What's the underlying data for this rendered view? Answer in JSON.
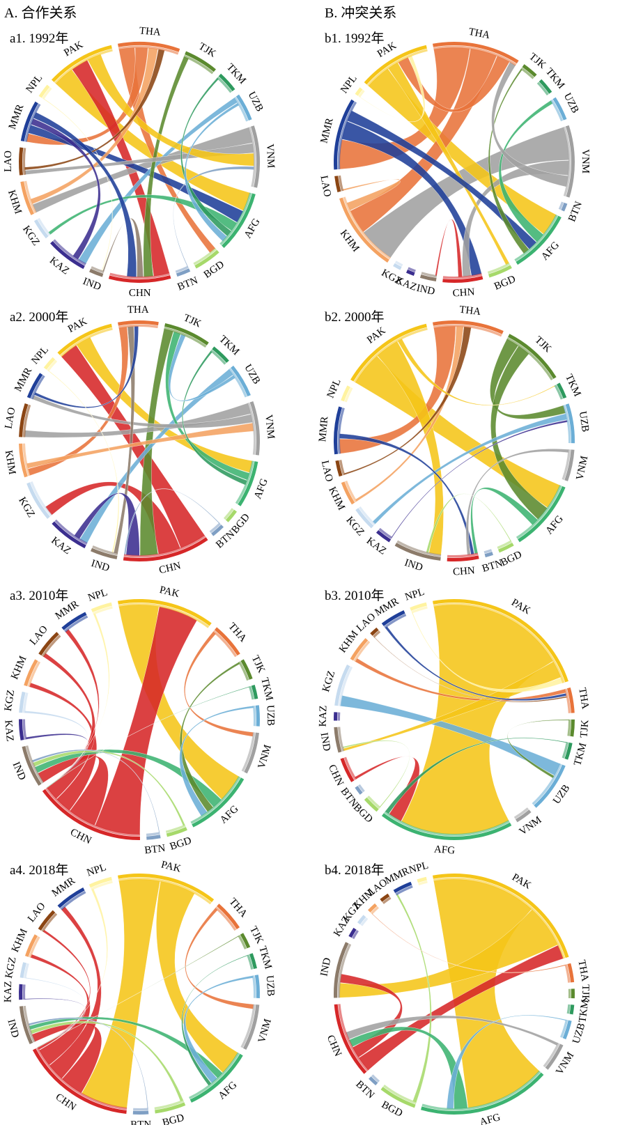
{
  "colors": {
    "PAK": "#f5c518",
    "THA": "#e8733a",
    "TJK": "#5b8a2e",
    "TKM": "#2e9a5e",
    "UZB": "#6baed6",
    "VNM": "#a0a0a0",
    "AFG": "#3cb371",
    "BGD": "#a6d96a",
    "BTN": "#7f9fc4",
    "CHN": "#d62728",
    "IND": "#8c7b6a",
    "KAZ": "#3b2e8f",
    "KGZ": "#c6dbef",
    "KHM": "#f4a261",
    "LAO": "#8b4513",
    "MMR": "#1f3f99",
    "NPL": "#fff3a0"
  },
  "columns": {
    "A": {
      "title": "A. 合作关系"
    },
    "B": {
      "title": "B. 冲突关系"
    }
  },
  "panels": [
    {
      "id": "a1",
      "title": "a1. 1992年",
      "nodes": [
        [
          "THA",
          9
        ],
        [
          "TJK",
          5
        ],
        [
          "TKM",
          3
        ],
        [
          "UZB",
          4
        ],
        [
          "VNM",
          9
        ],
        [
          "AFG",
          9
        ],
        [
          "BGD",
          4
        ],
        [
          "BTN",
          2
        ],
        [
          "CHN",
          9
        ],
        [
          "IND",
          2
        ],
        [
          "KAZ",
          6
        ],
        [
          "KGZ",
          3
        ],
        [
          "KHM",
          5
        ],
        [
          "LAO",
          4
        ],
        [
          "MMR",
          6
        ],
        [
          "NPL",
          2
        ],
        [
          "PAK",
          10
        ]
      ],
      "links": [
        [
          "PAK",
          "AFG",
          6
        ],
        [
          "THA",
          "BGD",
          5
        ],
        [
          "THA",
          "MMR",
          4
        ],
        [
          "CHN",
          "PAK",
          5
        ],
        [
          "VNM",
          "KHM",
          5
        ],
        [
          "MMR",
          "AFG",
          4
        ],
        [
          "UZB",
          "KAZ",
          4
        ],
        [
          "TJK",
          "CHN",
          3
        ],
        [
          "AFG",
          "KGZ",
          3
        ],
        [
          "VNM",
          "LAO",
          3
        ],
        [
          "IND",
          "CHN",
          2
        ],
        [
          "PAK",
          "VNM",
          4
        ],
        [
          "TKM",
          "AFG",
          2
        ],
        [
          "KHM",
          "THA",
          3
        ],
        [
          "NPL",
          "IND",
          1
        ],
        [
          "BTN",
          "VNM",
          1
        ],
        [
          "LAO",
          "THA",
          2
        ],
        [
          "KAZ",
          "MMR",
          3
        ],
        [
          "UZB",
          "AFG",
          2
        ],
        [
          "MMR",
          "CHN",
          3
        ]
      ]
    },
    {
      "id": "b1",
      "title": "b1. 1992年",
      "nodes": [
        [
          "THA",
          11
        ],
        [
          "TJK",
          2
        ],
        [
          "TKM",
          2
        ],
        [
          "UZB",
          3
        ],
        [
          "VNM",
          9
        ],
        [
          "BTN",
          1
        ],
        [
          "AFG",
          8
        ],
        [
          "BGD",
          3
        ],
        [
          "CHN",
          5
        ],
        [
          "IND",
          2
        ],
        [
          "KAZ",
          1
        ],
        [
          "KGZ",
          1
        ],
        [
          "KHM",
          10
        ],
        [
          "LAO",
          2
        ],
        [
          "MMR",
          9
        ],
        [
          "NPL",
          1
        ],
        [
          "PAK",
          9
        ]
      ],
      "links": [
        [
          "VNM",
          "KHM",
          9
        ],
        [
          "THA",
          "MMR",
          8
        ],
        [
          "PAK",
          "AFG",
          7
        ],
        [
          "THA",
          "KHM",
          6
        ],
        [
          "MMR",
          "CHN",
          5
        ],
        [
          "VNM",
          "CHN",
          4
        ],
        [
          "PAK",
          "BGD",
          3
        ],
        [
          "AFG",
          "UZB",
          3
        ],
        [
          "MMR",
          "AFG",
          3
        ],
        [
          "KHM",
          "LAO",
          2
        ],
        [
          "THA",
          "PAK",
          3
        ],
        [
          "TJK",
          "AFG",
          2
        ],
        [
          "VNM",
          "THA",
          3
        ],
        [
          "CHN",
          "IND",
          2
        ],
        [
          "NPL",
          "PAK",
          1
        ]
      ]
    },
    {
      "id": "a2",
      "title": "a2. 2000年",
      "nodes": [
        [
          "THA",
          6
        ],
        [
          "TJK",
          7
        ],
        [
          "TKM",
          3
        ],
        [
          "UZB",
          5
        ],
        [
          "VNM",
          8
        ],
        [
          "AFG",
          7
        ],
        [
          "BGD",
          2
        ],
        [
          "BTN",
          2
        ],
        [
          "CHN",
          13
        ],
        [
          "IND",
          4
        ],
        [
          "KAZ",
          6
        ],
        [
          "KGZ",
          6
        ],
        [
          "KHM",
          5
        ],
        [
          "LAO",
          5
        ],
        [
          "MMR",
          4
        ],
        [
          "NPL",
          2
        ],
        [
          "PAK",
          9
        ]
      ],
      "links": [
        [
          "CHN",
          "PAK",
          6
        ],
        [
          "CHN",
          "KGZ",
          5
        ],
        [
          "PAK",
          "AFG",
          5
        ],
        [
          "TJK",
          "CHN",
          4
        ],
        [
          "THA",
          "KHM",
          4
        ],
        [
          "VNM",
          "LAO",
          4
        ],
        [
          "UZB",
          "KAZ",
          4
        ],
        [
          "AFG",
          "TJK",
          3
        ],
        [
          "VNM",
          "MMR",
          3
        ],
        [
          "IND",
          "THA",
          3
        ],
        [
          "KAZ",
          "CHN",
          3
        ],
        [
          "KHM",
          "VNM",
          3
        ],
        [
          "TKM",
          "AFG",
          2
        ],
        [
          "MMR",
          "THA",
          2
        ],
        [
          "NPL",
          "IND",
          1
        ],
        [
          "BTN",
          "CHN",
          1
        ],
        [
          "UZB",
          "TJK",
          2
        ]
      ]
    },
    {
      "id": "b2",
      "title": "b2. 2000年",
      "nodes": [
        [
          "THA",
          9
        ],
        [
          "TJK",
          8
        ],
        [
          "TKM",
          2
        ],
        [
          "UZB",
          5
        ],
        [
          "VNM",
          4
        ],
        [
          "AFG",
          9
        ],
        [
          "BGD",
          2
        ],
        [
          "BTN",
          1
        ],
        [
          "CHN",
          4
        ],
        [
          "IND",
          6
        ],
        [
          "KAZ",
          2
        ],
        [
          "KGZ",
          3
        ],
        [
          "KHM",
          3
        ],
        [
          "LAO",
          2
        ],
        [
          "MMR",
          6
        ],
        [
          "NPL",
          2
        ],
        [
          "PAK",
          12
        ]
      ],
      "links": [
        [
          "PAK",
          "AFG",
          7
        ],
        [
          "THA",
          "MMR",
          6
        ],
        [
          "PAK",
          "IND",
          5
        ],
        [
          "TJK",
          "UZB",
          4
        ],
        [
          "TJK",
          "AFG",
          4
        ],
        [
          "UZB",
          "KGZ",
          3
        ],
        [
          "AFG",
          "CHN",
          2
        ],
        [
          "KHM",
          "THA",
          2
        ],
        [
          "LAO",
          "THA",
          2
        ],
        [
          "MMR",
          "CHN",
          2
        ],
        [
          "VNM",
          "CHN",
          2
        ],
        [
          "KAZ",
          "UZB",
          1
        ],
        [
          "BGD",
          "IND",
          1
        ],
        [
          "PAK",
          "TKM",
          1
        ]
      ]
    },
    {
      "id": "a3",
      "title": "a3. 2010年",
      "nodes": [
        [
          "PAK",
          14
        ],
        [
          "THA",
          5
        ],
        [
          "TJK",
          3
        ],
        [
          "TKM",
          2
        ],
        [
          "UZB",
          3
        ],
        [
          "VNM",
          6
        ],
        [
          "AFG",
          10
        ],
        [
          "BGD",
          3
        ],
        [
          "BTN",
          2
        ],
        [
          "CHN",
          16
        ],
        [
          "IND",
          6
        ],
        [
          "KAZ",
          3
        ],
        [
          "KGZ",
          3
        ],
        [
          "KHM",
          4
        ],
        [
          "LAO",
          4
        ],
        [
          "MMR",
          4
        ],
        [
          "NPL",
          3
        ]
      ],
      "links": [
        [
          "PAK",
          "AFG",
          8
        ],
        [
          "CHN",
          "PAK",
          8
        ],
        [
          "CHN",
          "IND",
          5
        ],
        [
          "CHN",
          "KHM",
          3
        ],
        [
          "CHN",
          "LAO",
          3
        ],
        [
          "CHN",
          "MMR",
          3
        ],
        [
          "THA",
          "VNM",
          2
        ],
        [
          "AFG",
          "IND",
          3
        ],
        [
          "KAZ",
          "CHN",
          2
        ],
        [
          "KGZ",
          "CHN",
          2
        ],
        [
          "TJK",
          "AFG",
          2
        ],
        [
          "UZB",
          "AFG",
          2
        ],
        [
          "BGD",
          "IND",
          2
        ],
        [
          "NPL",
          "CHN",
          2
        ],
        [
          "TKM",
          "CHN",
          1
        ],
        [
          "BTN",
          "IND",
          1
        ]
      ]
    },
    {
      "id": "b3",
      "title": "b3. 2010年",
      "nodes": [
        [
          "PAK",
          20
        ],
        [
          "THA",
          3
        ],
        [
          "TJK",
          2
        ],
        [
          "TKM",
          2
        ],
        [
          "UZB",
          6
        ],
        [
          "VNM",
          2
        ],
        [
          "AFG",
          16
        ],
        [
          "BGD",
          2
        ],
        [
          "BTN",
          1
        ],
        [
          "CHN",
          3
        ],
        [
          "IND",
          3
        ],
        [
          "KAZ",
          1
        ],
        [
          "KGZ",
          5
        ],
        [
          "KHM",
          3
        ],
        [
          "LAO",
          1
        ],
        [
          "MMR",
          3
        ],
        [
          "NPL",
          2
        ]
      ],
      "links": [
        [
          "PAK",
          "AFG",
          16
        ],
        [
          "UZB",
          "KGZ",
          5
        ],
        [
          "THA",
          "KHM",
          3
        ],
        [
          "PAK",
          "IND",
          2
        ],
        [
          "CHN",
          "AFG",
          2
        ],
        [
          "MMR",
          "THA",
          2
        ],
        [
          "TJK",
          "UZB",
          1
        ],
        [
          "NPL",
          "PAK",
          1
        ],
        [
          "BGD",
          "IND",
          1
        ],
        [
          "LAO",
          "THA",
          1
        ],
        [
          "TKM",
          "AFG",
          1
        ]
      ]
    },
    {
      "id": "a4",
      "title": "a4. 2018年",
      "nodes": [
        [
          "PAK",
          13
        ],
        [
          "THA",
          4
        ],
        [
          "TJK",
          2
        ],
        [
          "TKM",
          2
        ],
        [
          "UZB",
          3
        ],
        [
          "VNM",
          6
        ],
        [
          "AFG",
          9
        ],
        [
          "BGD",
          4
        ],
        [
          "BTN",
          2
        ],
        [
          "CHN",
          15
        ],
        [
          "IND",
          5
        ],
        [
          "KAZ",
          2
        ],
        [
          "KGZ",
          2
        ],
        [
          "KHM",
          3
        ],
        [
          "LAO",
          3
        ],
        [
          "MMR",
          4
        ],
        [
          "NPL",
          3
        ]
      ],
      "links": [
        [
          "PAK",
          "CHN",
          8
        ],
        [
          "PAK",
          "AFG",
          7
        ],
        [
          "CHN",
          "IND",
          4
        ],
        [
          "CHN",
          "MMR",
          3
        ],
        [
          "CHN",
          "KHM",
          3
        ],
        [
          "THA",
          "VNM",
          2
        ],
        [
          "CHN",
          "LAO",
          2
        ],
        [
          "BGD",
          "IND",
          2
        ],
        [
          "NPL",
          "CHN",
          2
        ],
        [
          "AFG",
          "IND",
          2
        ],
        [
          "UZB",
          "AFG",
          2
        ],
        [
          "KAZ",
          "CHN",
          1
        ],
        [
          "KGZ",
          "CHN",
          1
        ],
        [
          "TJK",
          "CHN",
          1
        ],
        [
          "TKM",
          "AFG",
          1
        ],
        [
          "BTN",
          "IND",
          1
        ]
      ]
    },
    {
      "id": "b4",
      "title": "b4. 2018年",
      "nodes": [
        [
          "PAK",
          18
        ],
        [
          "THA",
          2
        ],
        [
          "TJK",
          1
        ],
        [
          "TKM",
          1
        ],
        [
          "UZB",
          2
        ],
        [
          "VNM",
          3
        ],
        [
          "AFG",
          14
        ],
        [
          "BGD",
          4
        ],
        [
          "BTN",
          1
        ],
        [
          "CHN",
          8
        ],
        [
          "IND",
          6
        ],
        [
          "KAZ",
          1
        ],
        [
          "KGZ",
          1
        ],
        [
          "KHM",
          1
        ],
        [
          "LAO",
          1
        ],
        [
          "MMR",
          2
        ],
        [
          "NPL",
          1
        ]
      ],
      "links": [
        [
          "PAK",
          "AFG",
          12
        ],
        [
          "PAK",
          "IND",
          5
        ],
        [
          "CHN",
          "PAK",
          4
        ],
        [
          "CHN",
          "IND",
          3
        ],
        [
          "BGD",
          "MMR",
          2
        ],
        [
          "AFG",
          "CHN",
          2
        ],
        [
          "VNM",
          "CHN",
          2
        ],
        [
          "THA",
          "KHM",
          1
        ],
        [
          "UZB",
          "AFG",
          1
        ]
      ]
    }
  ]
}
